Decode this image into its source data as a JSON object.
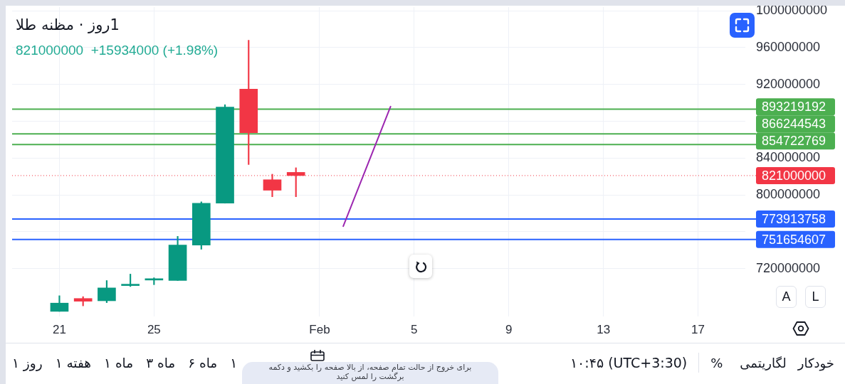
{
  "chart_data": {
    "type": "candlestick",
    "title": "1روز · مظنه طلا",
    "subtitle": "821000000  +15934000 (+1.98%)",
    "x": [
      "--01-21",
      "--01-22",
      "--01-23",
      "--01-24",
      "--01-25",
      "--01-26",
      "--01-27",
      "--01-28",
      "--01-29",
      "--01-30",
      "--01-31"
    ],
    "ohlc": [
      [
        673500000,
        690500000,
        673500000,
        682500000
      ],
      [
        687500000,
        689500000,
        679500000,
        684500000
      ],
      [
        685000000,
        707000000,
        683000000,
        699000000
      ],
      [
        701500000,
        714000000,
        700500000,
        702000000
      ],
      [
        707500000,
        710000000,
        702500000,
        708000000
      ],
      [
        707000000,
        755000000,
        707000000,
        745500000
      ],
      [
        745500000,
        792500000,
        741000000,
        791000000
      ],
      [
        791000000,
        898000000,
        791000000,
        895500000
      ],
      [
        915000000,
        968000000,
        833000000,
        867500000
      ],
      [
        816500000,
        822500000,
        798000000,
        805066000
      ],
      [
        824500000,
        829500000,
        798000000,
        821000000
      ]
    ],
    "colors": [
      "#089981",
      "#f23645",
      "#089981",
      "#089981",
      "#089981",
      "#089981",
      "#089981",
      "#089981",
      "#f23645",
      "#f23645",
      "#f23645"
    ],
    "series": [
      {
        "type": "line",
        "x": [
          "--02-02",
          "--02-04"
        ],
        "values": [
          766000000,
          896000000
        ],
        "color": "#9c27b0"
      }
    ],
    "xlim": [
      "--01-19",
      "--02-19"
    ],
    "xticks": [
      {
        "value": "--01-21",
        "label": "21"
      },
      {
        "value": "--01-25",
        "label": "25"
      },
      {
        "value": "--02-01",
        "label": "Feb"
      },
      {
        "value": "--02-05",
        "label": "5"
      },
      {
        "value": "--02-09",
        "label": "9"
      },
      {
        "value": "--02-13",
        "label": "13"
      },
      {
        "value": "--02-17",
        "label": "17"
      }
    ],
    "ylim": [
      668000000,
      1004000000
    ],
    "yticks": [
      720000000,
      {
        "value": 760000000,
        "label": null
      },
      800000000,
      840000000,
      {
        "value": 880000000,
        "label": null
      },
      920000000,
      960000000,
      1000000000
    ],
    "grid": true,
    "ref_lines": [
      {
        "axis": "y",
        "value": 893219192,
        "label": "893219192",
        "color": "#4caf50",
        "line_style": "solid"
      },
      {
        "axis": "y",
        "value": 866244543,
        "label": "866244543",
        "color": "#4caf50",
        "line_style": "solid"
      },
      {
        "axis": "y",
        "value": 854722769,
        "label": "854722769",
        "color": "#4caf50",
        "line_style": "solid"
      },
      {
        "axis": "y",
        "value": 821000000,
        "label": "821000000",
        "color": "#f23645",
        "line_style": "dotted"
      },
      {
        "axis": "y",
        "value": 773913758,
        "label": "773913758",
        "color": "#2962ff",
        "line_style": "solid"
      },
      {
        "axis": "y",
        "value": 751654607,
        "label": "751654607",
        "color": "#2962ff",
        "line_style": "solid"
      }
    ],
    "annotations": [
      "A",
      "L",
      "روز ۱",
      "هفته ۱",
      "ماه ۱",
      "ماه ۳",
      "ماه ۶",
      "۱",
      "۱۰:۴۵ (UTC+3:30)",
      "%",
      "لگاریتمی",
      "خودکار",
      "برای خروج از حالت تمام صفحه، از بالا صفحه را بکشید و دکمه برگشت را لمس کنید"
    ]
  }
}
